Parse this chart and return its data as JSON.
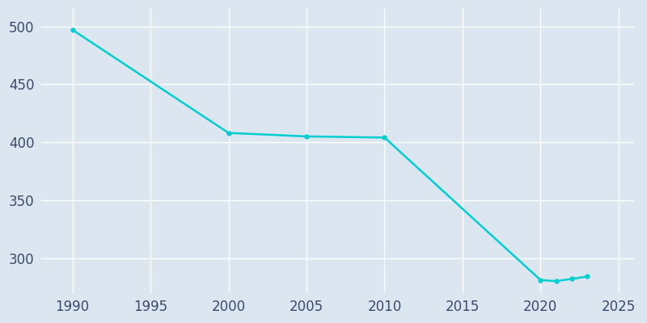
{
  "x": [
    1990,
    2000,
    2005,
    2010,
    2020,
    2021,
    2022,
    2023
  ],
  "y": [
    497,
    408,
    405,
    404,
    281,
    280,
    282,
    284
  ],
  "line_color": "#00CED1",
  "marker": "o",
  "marker_size": 3.5,
  "linewidth": 1.8,
  "axes_facecolor": "#dce6f0",
  "figure_facecolor": "#dce6f0",
  "tick_label_color": "#3a4a6b",
  "xlim": [
    1988,
    2026
  ],
  "ylim": [
    270,
    515
  ],
  "xticks": [
    1990,
    1995,
    2000,
    2005,
    2010,
    2015,
    2020,
    2025
  ],
  "yticks": [
    300,
    350,
    400,
    450,
    500
  ],
  "tick_fontsize": 12,
  "grid_color": "#ffffff",
  "grid_linewidth": 1.0
}
